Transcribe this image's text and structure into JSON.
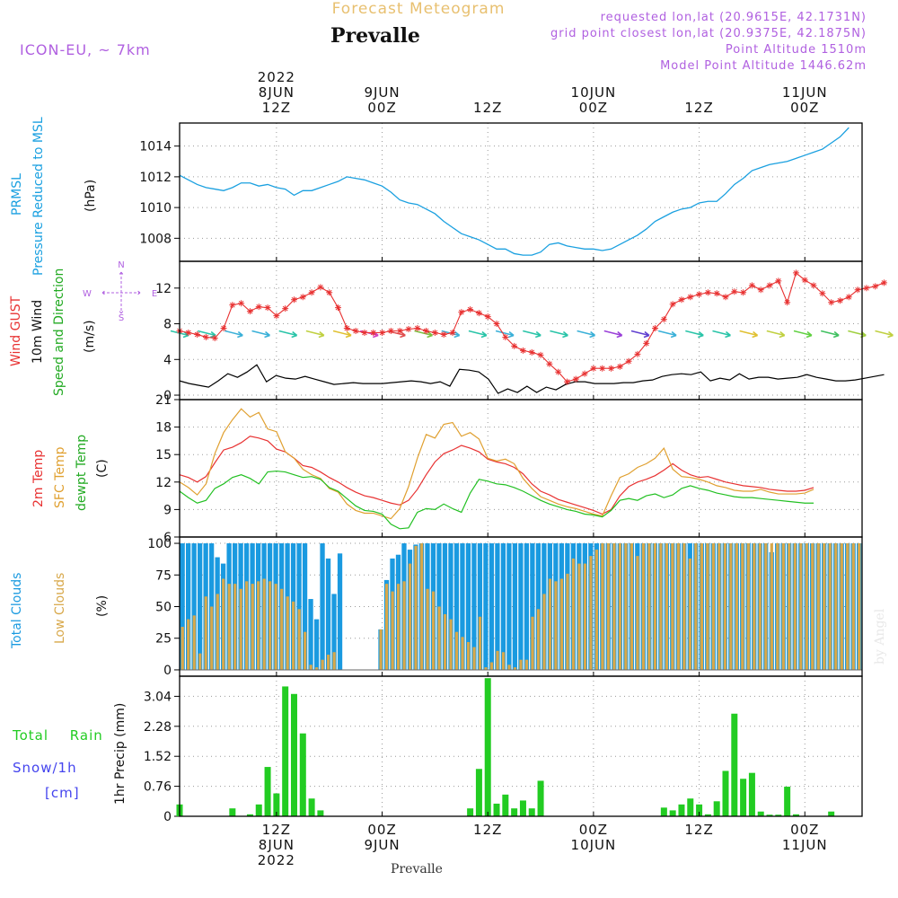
{
  "header": {
    "subtitle": "Forecast Meteogram",
    "title": "Prevalle",
    "model": "ICON-EU, ~ 7km",
    "info_lines": [
      "requested lon,lat (20.9615E, 42.1731N)",
      "grid point closest lon,lat (20.9375E, 42.1875N)",
      "Point Altitude 1510m",
      "Model Point Altitude 1446.62m"
    ],
    "footer_label": "Prevalle",
    "credit": "by Angel"
  },
  "time_axis": {
    "top_labels": [
      {
        "t": 0,
        "lines": [
          "2022",
          "8JUN",
          "12Z"
        ]
      },
      {
        "t": 12,
        "lines": [
          "9JUN",
          "00Z"
        ]
      },
      {
        "t": 24,
        "lines": [
          "12Z"
        ]
      },
      {
        "t": 36,
        "lines": [
          "10JUN",
          "00Z"
        ]
      },
      {
        "t": 48,
        "lines": [
          "12Z"
        ]
      },
      {
        "t": 60,
        "lines": [
          "11JUN",
          "00Z"
        ]
      }
    ],
    "bottom_labels": [
      {
        "t": 0,
        "lines": [
          "12Z",
          "8JUN",
          "2022"
        ]
      },
      {
        "t": 12,
        "lines": [
          "00Z",
          "9JUN"
        ]
      },
      {
        "t": 24,
        "lines": [
          "12Z"
        ]
      },
      {
        "t": 36,
        "lines": [
          "00Z",
          "10JUN"
        ]
      },
      {
        "t": 48,
        "lines": [
          "12Z"
        ]
      },
      {
        "t": 60,
        "lines": [
          "00Z",
          "11JUN"
        ]
      }
    ]
  },
  "panel_labels": {
    "prmsl": {
      "short": "PRMSL",
      "long": "Pressure Reduced to MSL",
      "unit": "(hPa)"
    },
    "wind": {
      "gust": "Wind GUST",
      "wind10": "10m Wind",
      "speed_dir": "Speed and Direction",
      "unit": "(m/s)",
      "compass": {
        "n": "N",
        "s": "S",
        "w": "W",
        "e": "E"
      }
    },
    "temp": {
      "t2m": "2m Temp",
      "sfc": "SFC Temp",
      "dew": "dewpt Temp",
      "unit": "(C)"
    },
    "clouds": {
      "total": "Total Clouds",
      "low": "Low Clouds",
      "unit": "(%)"
    },
    "precip": {
      "rain": "Total Rain",
      "snow": "Snow/1h",
      "snow_unit": "[cm]",
      "axis": "1hr Precip (mm)"
    }
  },
  "colors": {
    "pressure": "#1aa0e0",
    "gust": "#e83232",
    "wind": "#000000",
    "t2m": "#e83232",
    "sfc": "#e0a030",
    "dew": "#22c022",
    "total_clouds": "#1a9ae0",
    "low_clouds": "#d8a84a",
    "rain": "#22cc22",
    "snow": "#4444ee",
    "purple": "#b060e0",
    "orange_title": "#e8c070"
  },
  "chart_data": [
    {
      "type": "line",
      "name": "PRMSL",
      "ylim": [
        1006.5,
        1015.5
      ],
      "yticks": [
        "1008",
        "1010",
        "1012",
        "1014"
      ],
      "ytick_values": [
        1008,
        1010,
        1012,
        1014
      ],
      "time_start": -11,
      "time_step": 1,
      "series": [
        {
          "values": [
            1012.1,
            1011.8,
            1011.5,
            1011.3,
            1011.2,
            1011.1,
            1011.3,
            1011.6,
            1011.6,
            1011.4,
            1011.5,
            1011.3,
            1011.2,
            1010.8,
            1011.1,
            1011.1,
            1011.3,
            1011.5,
            1011.7,
            1012.0,
            1011.9,
            1011.8,
            1011.6,
            1011.4,
            1011.0,
            1010.5,
            1010.3,
            1010.2,
            1009.9,
            1009.6,
            1009.1,
            1008.7,
            1008.3,
            1008.1,
            1007.9,
            1007.6,
            1007.3,
            1007.3,
            1007.0,
            1006.9,
            1006.9,
            1007.1,
            1007.6,
            1007.7,
            1007.5,
            1007.4,
            1007.3,
            1007.3,
            1007.2,
            1007.3,
            1007.6,
            1007.9,
            1008.2,
            1008.6,
            1009.1,
            1009.4,
            1009.7,
            1009.9,
            1010.0,
            1010.3,
            1010.4,
            1010.4,
            1010.9,
            1011.5,
            1011.9,
            1012.4,
            1012.6,
            1012.8,
            1012.9,
            1013.0,
            1013.2,
            1013.4,
            1013.6,
            1013.8,
            1014.2,
            1014.6,
            1015.2
          ]
        }
      ]
    },
    {
      "type": "line",
      "name": "Wind",
      "ylim": [
        -0.5,
        15
      ],
      "yticks": [
        "0",
        "4",
        "8",
        "12"
      ],
      "ytick_values": [
        0,
        4,
        8,
        12
      ],
      "time_start": -11,
      "time_step": 1,
      "series": [
        {
          "values": [
            7.2,
            7.0,
            6.8,
            6.5,
            6.4,
            7.5,
            10.1,
            10.3,
            9.4,
            9.9,
            9.8,
            8.9,
            9.7,
            10.7,
            11.0,
            11.5,
            12.1,
            11.5,
            9.8,
            7.5,
            7.2,
            7.0,
            7.0,
            7.0,
            7.2,
            7.2,
            7.4,
            7.5,
            7.2,
            7.0,
            6.8,
            7.0,
            9.3,
            9.6,
            9.2,
            8.8,
            8.0,
            6.5,
            5.5,
            5.0,
            4.8,
            4.5,
            3.5,
            2.6,
            1.5,
            1.8,
            2.4,
            3.0,
            3.0,
            3.0,
            3.2,
            3.8,
            4.6,
            5.8,
            7.5,
            8.5,
            10.2,
            10.7,
            11.0,
            11.3,
            11.5,
            11.4,
            11.0,
            11.6,
            11.5,
            12.3,
            11.8,
            12.3,
            12.8,
            10.4,
            13.7,
            12.9,
            12.3,
            11.4,
            10.4,
            10.6,
            11.0,
            11.8,
            12.0,
            12.2,
            12.6
          ]
        },
        {
          "values": [
            1.6,
            1.3,
            1.1,
            0.9,
            1.6,
            2.4,
            2.0,
            2.6,
            3.4,
            1.5,
            2.2,
            1.9,
            1.8,
            2.1,
            1.8,
            1.5,
            1.2,
            1.3,
            1.4,
            1.3,
            1.3,
            1.3,
            1.4,
            1.5,
            1.6,
            1.5,
            1.3,
            1.5,
            1.0,
            2.9,
            2.8,
            2.6,
            1.8,
            0.2,
            0.7,
            0.3,
            1.0,
            0.3,
            0.9,
            0.6,
            1.2,
            1.5,
            1.5,
            1.3,
            1.3,
            1.3,
            1.4,
            1.4,
            1.6,
            1.7,
            2.1,
            2.3,
            2.4,
            2.3,
            2.6,
            1.6,
            1.9,
            1.7,
            2.4,
            1.8,
            2.0,
            2.0,
            1.8,
            1.9,
            2.0,
            2.3,
            2.0,
            1.8,
            1.6,
            1.6,
            1.7,
            1.9,
            2.1,
            2.3
          ]
        }
      ],
      "wind_arrows": {
        "level": 7,
        "arrow_colors": [
          "#29c4a8",
          "#29c4a8",
          "#3ab0d8",
          "#3ab0d8",
          "#29c4a8",
          "#c0d040",
          "#e0c030",
          "#d040c0",
          "#e05050",
          "#7ac040",
          "#3ab0d8",
          "#29c4a8",
          "#3ab0d8",
          "#29c4a8",
          "#29c4a8",
          "#3ab0d8",
          "#9a40d8",
          "#6040d0",
          "#3ab0d8",
          "#29c4a8",
          "#29c4a8",
          "#e0c030",
          "#c0d040",
          "#60d040",
          "#40c060",
          "#a0d040",
          "#c0d040"
        ]
      }
    },
    {
      "type": "line",
      "name": "Temperature",
      "ylim": [
        6,
        21
      ],
      "yticks": [
        "6",
        "9",
        "12",
        "15",
        "18",
        "21"
      ],
      "ytick_values": [
        6,
        9,
        12,
        15,
        18,
        21
      ],
      "time_start": -11,
      "time_step": 1,
      "series": [
        {
          "values": [
            12.8,
            12.5,
            12.0,
            12.6,
            14.1,
            15.5,
            15.8,
            16.3,
            17.0,
            16.8,
            16.5,
            15.6,
            15.3,
            14.6,
            13.8,
            13.6,
            13.1,
            12.5,
            12.0,
            11.4,
            10.9,
            10.5,
            10.3,
            10.0,
            9.7,
            9.5,
            10.0,
            11.2,
            12.8,
            14.2,
            15.1,
            15.5,
            16.0,
            15.7,
            15.3,
            14.5,
            14.2,
            14.0,
            13.6,
            12.9,
            11.8,
            11.0,
            10.6,
            10.1,
            9.8,
            9.5,
            9.2,
            8.9,
            8.5,
            9.0,
            10.5,
            11.5,
            12.0,
            12.3,
            12.7,
            13.3,
            14.0,
            13.3,
            12.8,
            12.5,
            12.6,
            12.3,
            12.0,
            11.8,
            11.6,
            11.5,
            11.4,
            11.2,
            11.1,
            11.0,
            11.0,
            11.1,
            11.4
          ]
        },
        {
          "values": [
            12.0,
            11.4,
            10.6,
            11.8,
            15.1,
            17.4,
            18.8,
            20.0,
            19.1,
            19.6,
            17.8,
            17.5,
            15.3,
            14.6,
            13.4,
            12.8,
            12.4,
            11.3,
            10.9,
            9.6,
            8.9,
            8.6,
            8.6,
            8.3,
            8.0,
            9.1,
            11.5,
            14.6,
            17.2,
            16.8,
            18.3,
            18.5,
            17.0,
            17.4,
            16.7,
            14.6,
            14.3,
            14.5,
            14.0,
            12.4,
            11.3,
            10.4,
            10.0,
            9.6,
            9.3,
            9.1,
            8.8,
            8.5,
            8.3,
            10.5,
            12.5,
            12.9,
            13.6,
            14.0,
            14.6,
            15.7,
            13.4,
            12.6,
            12.5,
            12.3,
            12.0,
            11.6,
            11.4,
            11.1,
            11.0,
            11.0,
            11.2,
            10.9,
            10.7,
            10.7,
            10.7,
            10.8,
            11.2
          ]
        },
        {
          "values": [
            11.0,
            10.3,
            9.7,
            10.0,
            11.3,
            11.8,
            12.5,
            12.8,
            12.4,
            11.8,
            13.1,
            13.2,
            13.1,
            12.8,
            12.5,
            12.6,
            12.3,
            11.4,
            11.0,
            10.2,
            9.4,
            8.9,
            8.8,
            8.5,
            7.4,
            6.9,
            7.0,
            8.7,
            9.1,
            9.0,
            9.6,
            9.1,
            8.7,
            10.8,
            12.3,
            12.1,
            11.8,
            11.7,
            11.4,
            11.0,
            10.5,
            10.0,
            9.6,
            9.3,
            9.0,
            8.8,
            8.5,
            8.4,
            8.2,
            8.9,
            10.0,
            10.2,
            10.0,
            10.5,
            10.7,
            10.3,
            10.6,
            11.3,
            11.6,
            11.3,
            11.1,
            10.8,
            10.6,
            10.4,
            10.3,
            10.3,
            10.2,
            10.1,
            10.0,
            9.9,
            9.8,
            9.7,
            9.7
          ]
        }
      ]
    },
    {
      "type": "bar",
      "name": "Clouds",
      "ylim": [
        -5,
        105
      ],
      "yticks": [
        "0",
        "25",
        "50",
        "75",
        "100"
      ],
      "ytick_values": [
        0,
        25,
        50,
        75,
        100
      ],
      "time_start": -11,
      "time_step": 1,
      "series": [
        {
          "values": [
            100,
            100,
            100,
            100,
            100,
            100,
            89,
            84,
            100,
            100,
            100,
            100,
            100,
            100,
            100,
            100,
            100,
            100,
            100,
            100,
            100,
            100,
            56,
            40,
            100,
            88,
            60,
            92,
            0,
            0,
            0,
            0,
            0,
            0,
            32,
            71,
            88,
            91,
            100,
            95,
            99,
            100,
            100,
            100,
            100,
            100,
            100,
            100,
            100,
            100,
            100,
            100,
            100,
            100,
            100,
            100,
            100,
            100,
            100,
            100,
            100,
            100,
            100,
            100,
            100,
            100,
            100,
            100,
            100,
            100,
            100,
            100,
            100,
            100,
            100,
            100,
            100,
            100,
            100,
            100,
            100,
            100,
            100,
            100,
            100,
            100,
            100,
            100,
            100,
            100,
            100,
            100,
            100,
            100,
            100,
            100,
            100,
            100,
            100,
            100,
            100,
            93,
            100,
            100,
            100,
            100,
            100,
            100,
            100,
            100,
            100,
            100,
            100,
            100,
            100,
            100,
            100
          ]
        },
        {
          "values": [
            34,
            40,
            43,
            13,
            58,
            50,
            60,
            72,
            68,
            68,
            64,
            70,
            68,
            70,
            72,
            70,
            68,
            64,
            58,
            54,
            48,
            30,
            4,
            2,
            8,
            12,
            14,
            0,
            0,
            0,
            0,
            0,
            0,
            0,
            32,
            68,
            62,
            68,
            70,
            84,
            98,
            100,
            64,
            62,
            50,
            44,
            40,
            30,
            26,
            22,
            18,
            42,
            2,
            6,
            15,
            14,
            4,
            2,
            8,
            8,
            42,
            48,
            60,
            72,
            70,
            72,
            76,
            88,
            84,
            84,
            90,
            95,
            100,
            100,
            100,
            100,
            100,
            100,
            90,
            100,
            100,
            100,
            100,
            100,
            100,
            100,
            100,
            88,
            100,
            100,
            100,
            100,
            100,
            100,
            100,
            100,
            100,
            100,
            100,
            100,
            100,
            100,
            100,
            100,
            100,
            100,
            100,
            100,
            100,
            100,
            100,
            100,
            100,
            100,
            100,
            100,
            100
          ]
        }
      ]
    },
    {
      "type": "bar",
      "name": "Precipitation",
      "ylim": [
        0,
        3.55
      ],
      "yticks": [
        "0",
        "0.76",
        "1.52",
        "2.28",
        "3.04"
      ],
      "ytick_values": [
        0,
        0.76,
        1.52,
        2.28,
        3.04
      ],
      "time_start": -11,
      "time_step": 1,
      "series": [
        {
          "values": [
            0.3,
            0,
            0,
            0,
            0,
            0,
            0.2,
            0,
            0.05,
            0.3,
            1.25,
            0.58,
            3.29,
            3.1,
            2.1,
            0.45,
            0.15,
            0,
            0,
            0,
            0,
            0,
            0,
            0,
            0,
            0,
            0,
            0,
            0,
            0,
            0,
            0,
            0,
            0.2,
            1.2,
            3.5,
            0.32,
            0.55,
            0.2,
            0.4,
            0.2,
            0.9,
            0,
            0,
            0,
            0,
            0,
            0,
            0,
            0,
            0,
            0,
            0,
            0,
            0,
            0.22,
            0.15,
            0.3,
            0.45,
            0.3,
            0.05,
            0.38,
            1.15,
            2.6,
            0.95,
            1.1,
            0.12,
            0.04,
            0.04,
            0.75,
            0.05,
            0,
            0,
            0,
            0.12,
            0,
            0
          ]
        }
      ]
    }
  ]
}
